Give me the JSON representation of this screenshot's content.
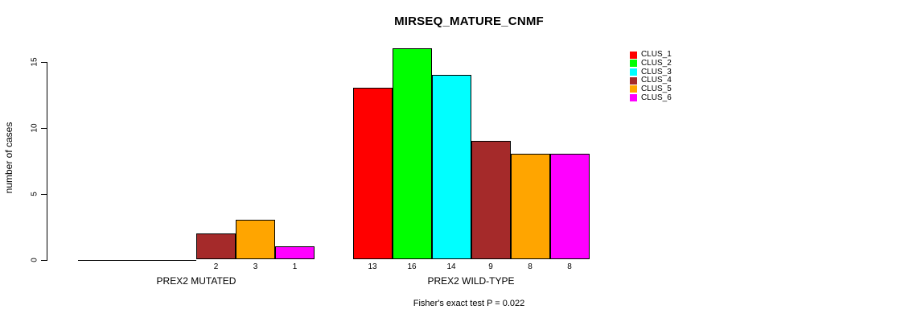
{
  "chart_data": {
    "type": "bar",
    "title": "MIRSEQ_MATURE_CNMF",
    "ylabel": "number of cases",
    "xlabel": "",
    "footer": "Fisher's exact test P = 0.022",
    "ylim": [
      0,
      16
    ],
    "yticks": [
      "0",
      "5",
      "10",
      "15"
    ],
    "ytick_values": [
      0,
      5,
      10,
      15
    ],
    "grid": false,
    "legend_position": "top-right",
    "legend_entries": [
      "CLUS_1",
      "CLUS_2",
      "CLUS_3",
      "CLUS_4",
      "CLUS_5",
      "CLUS_6"
    ],
    "groups": [
      "PREX2 MUTATED",
      "PREX2 WILD-TYPE"
    ],
    "series": [
      {
        "name": "CLUS_1",
        "color": "#FF0000",
        "values": [
          0,
          13
        ]
      },
      {
        "name": "CLUS_2",
        "color": "#00FF00",
        "values": [
          0,
          16
        ]
      },
      {
        "name": "CLUS_3",
        "color": "#00FFFF",
        "values": [
          0,
          14
        ]
      },
      {
        "name": "CLUS_4",
        "color": "#A52A2A",
        "values": [
          2,
          9
        ]
      },
      {
        "name": "CLUS_5",
        "color": "#FFA500",
        "values": [
          3,
          8
        ]
      },
      {
        "name": "CLUS_6",
        "color": "#FF00FF",
        "values": [
          1,
          8
        ]
      }
    ],
    "bar_value_labels": {
      "PREX2 MUTATED": [
        "",
        "",
        "",
        "2",
        "3",
        "1"
      ],
      "PREX2 WILD-TYPE": [
        "13",
        "16",
        "14",
        "9",
        "8",
        "8"
      ]
    },
    "axis_color": "#000000",
    "background_color": "#FFFFFF"
  }
}
